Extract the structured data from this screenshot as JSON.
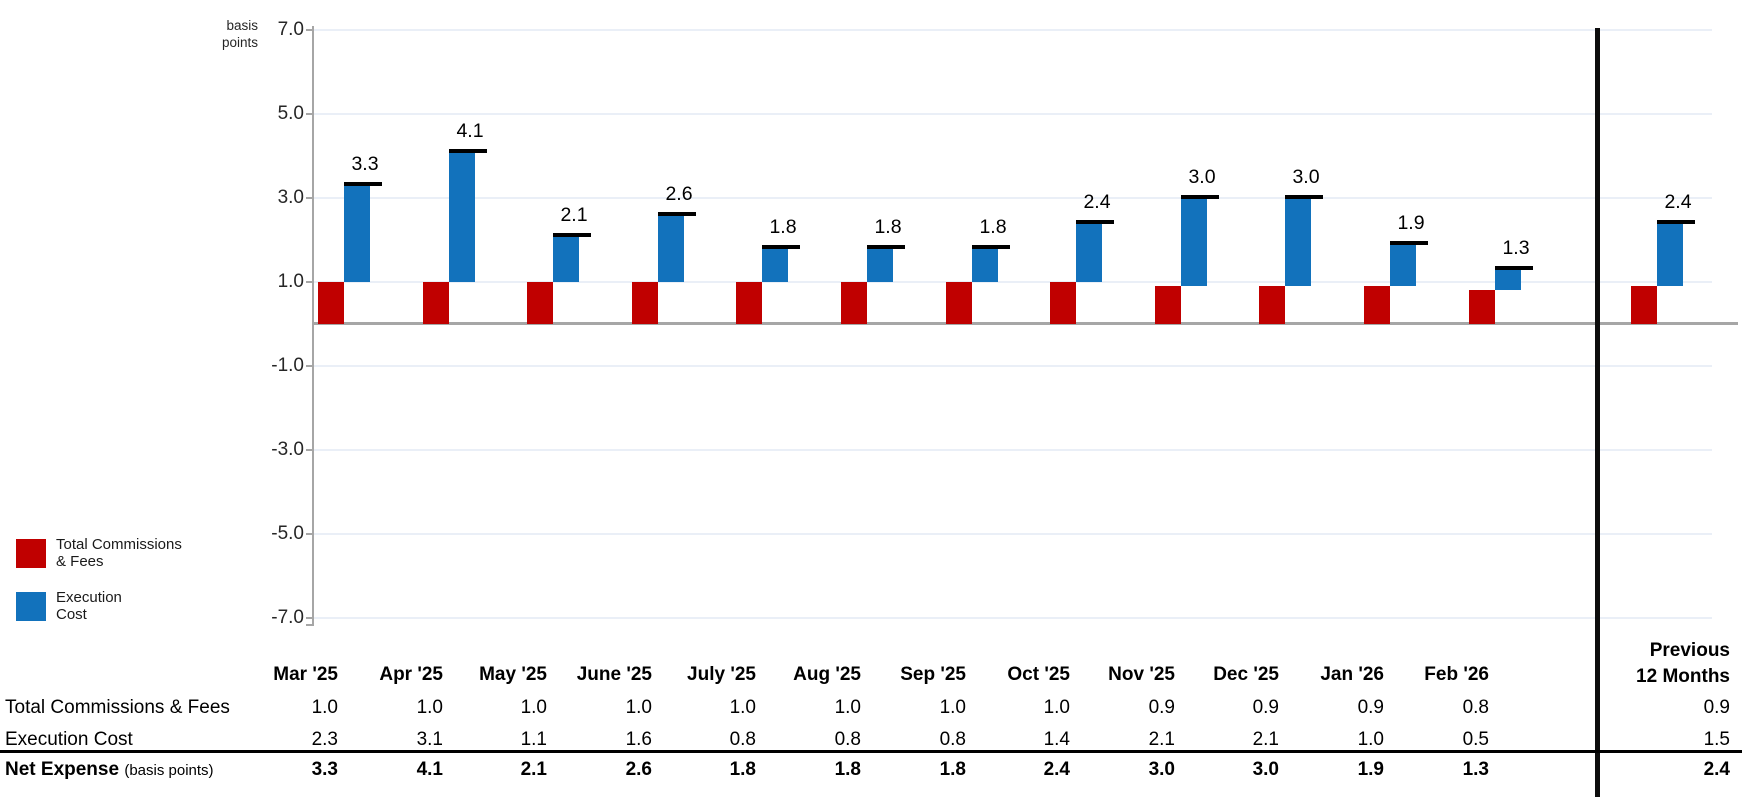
{
  "chart": {
    "y_axis_unit_label": [
      "basis",
      "points"
    ],
    "legend": [
      {
        "label_lines": [
          "Total Commissions",
          "& Fees"
        ],
        "color": "#C00000"
      },
      {
        "label_lines": [
          "Execution",
          "Cost"
        ],
        "color": "#1272BC"
      }
    ]
  },
  "chart_data": {
    "type": "bar",
    "subtype": "stacked-waterfall-with-total-cap",
    "title": "",
    "unit": "basis points",
    "xlabel": "",
    "ylabel": "basis points",
    "ylim": [
      -7.0,
      7.0
    ],
    "y_ticks": [
      7.0,
      5.0,
      3.0,
      1.0,
      -1.0,
      -3.0,
      -5.0,
      -7.0
    ],
    "grid": true,
    "legend_position": "bottom-left",
    "categories": [
      "Mar '25",
      "Apr '25",
      "May '25",
      "June '25",
      "July '25",
      "Aug '25",
      "Sep '25",
      "Oct '25",
      "Nov '25",
      "Dec '25",
      "Jan '26",
      "Feb '26",
      "Previous 12 Months"
    ],
    "series": [
      {
        "name": "Total Commissions & Fees",
        "color": "#C00000",
        "values": [
          1.0,
          1.0,
          1.0,
          1.0,
          1.0,
          1.0,
          1.0,
          1.0,
          0.9,
          0.9,
          0.9,
          0.8,
          0.9
        ]
      },
      {
        "name": "Execution Cost",
        "color": "#1272BC",
        "values": [
          2.3,
          3.1,
          1.1,
          1.6,
          0.8,
          0.8,
          0.8,
          1.4,
          2.1,
          2.1,
          1.0,
          0.5,
          1.5
        ]
      }
    ],
    "totals": [
      3.3,
      4.1,
      2.1,
      2.6,
      1.8,
      1.8,
      1.8,
      2.4,
      3.0,
      3.0,
      1.9,
      1.3,
      2.4
    ],
    "totals_label": "Net Expense",
    "separator_after_category": "Feb '26",
    "colors": {
      "axis": "#A6A6A6",
      "gridline": "#EAEFF7",
      "total_cap": "#000000",
      "divider": "#0d0d0d"
    }
  },
  "table": {
    "col_headers": [
      "Mar '25",
      "Apr '25",
      "May '25",
      "June '25",
      "July '25",
      "Aug '25",
      "Sep '25",
      "Oct '25",
      "Nov '25",
      "Dec '25",
      "Jan '26",
      "Feb '26"
    ],
    "last_col_header_lines": [
      "Previous",
      "12 Months"
    ],
    "rows": [
      {
        "label": "Total Commissions & Fees",
        "bold": false,
        "values": [
          "1.0",
          "1.0",
          "1.0",
          "1.0",
          "1.0",
          "1.0",
          "1.0",
          "1.0",
          "0.9",
          "0.9",
          "0.9",
          "0.8"
        ],
        "prev": "0.9"
      },
      {
        "label": "Execution Cost",
        "bold": false,
        "values": [
          "2.3",
          "3.1",
          "1.1",
          "1.6",
          "0.8",
          "0.8",
          "0.8",
          "1.4",
          "2.1",
          "2.1",
          "1.0",
          "0.5"
        ],
        "prev": "1.5"
      },
      {
        "label": "Net Expense",
        "label_suffix": "(basis points)",
        "bold": true,
        "values": [
          "3.3",
          "4.1",
          "2.1",
          "2.6",
          "1.8",
          "1.8",
          "1.8",
          "2.4",
          "3.0",
          "3.0",
          "1.9",
          "1.3"
        ],
        "prev": "2.4"
      }
    ]
  }
}
